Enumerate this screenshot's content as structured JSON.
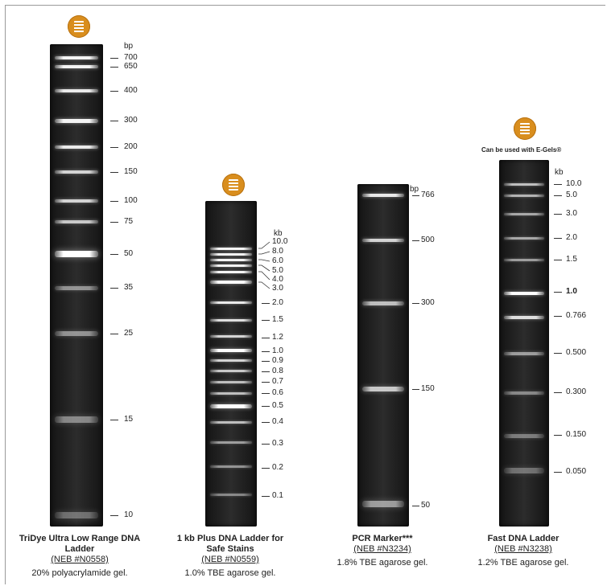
{
  "panels": [
    {
      "id": "tridye",
      "title": "TriDye Ultra Low Range DNA Ladder",
      "catalog": "(NEB #N0558)",
      "gel": "20% polyacrylamide gel.",
      "unit": "bp",
      "badge": "ladder-icon",
      "bands": [
        {
          "label": "700",
          "brightness": 0.95
        },
        {
          "label": "650",
          "brightness": 0.95
        },
        {
          "label": "400",
          "brightness": 0.9
        },
        {
          "label": "300",
          "brightness": 0.95
        },
        {
          "label": "200",
          "brightness": 0.9
        },
        {
          "label": "150",
          "brightness": 0.8
        },
        {
          "label": "100",
          "brightness": 0.8
        },
        {
          "label": "75",
          "brightness": 0.75
        },
        {
          "label": "50",
          "brightness": 1.0
        },
        {
          "label": "35",
          "brightness": 0.5
        },
        {
          "label": "25",
          "brightness": 0.5
        },
        {
          "label": "15",
          "brightness": 0.45
        },
        {
          "label": "10",
          "brightness": 0.35
        }
      ]
    },
    {
      "id": "kbplus",
      "title": "1 kb Plus DNA Ladder for Safe Stains",
      "catalog": "(NEB #N0559)",
      "gel": "1.0% TBE agarose gel.",
      "unit": "kb",
      "badge": "ladder-icon",
      "bands": [
        {
          "label": "10.0",
          "brightness": 0.95
        },
        {
          "label": "8.0",
          "brightness": 0.95
        },
        {
          "label": "6.0",
          "brightness": 0.95
        },
        {
          "label": "5.0",
          "brightness": 0.95
        },
        {
          "label": "4.0",
          "brightness": 0.95
        },
        {
          "label": "3.0",
          "brightness": 1.0
        },
        {
          "label": "2.0",
          "brightness": 0.9
        },
        {
          "label": "1.5",
          "brightness": 0.85
        },
        {
          "label": "1.2",
          "brightness": 0.8
        },
        {
          "label": "1.0",
          "brightness": 1.0
        },
        {
          "label": "0.9",
          "brightness": 0.8
        },
        {
          "label": "0.8",
          "brightness": 0.75
        },
        {
          "label": "0.7",
          "brightness": 0.7
        },
        {
          "label": "0.6",
          "brightness": 0.7
        },
        {
          "label": "0.5",
          "brightness": 1.0
        },
        {
          "label": "0.4",
          "brightness": 0.7
        },
        {
          "label": "0.3",
          "brightness": 0.55
        },
        {
          "label": "0.2",
          "brightness": 0.5
        },
        {
          "label": "0.1",
          "brightness": 0.45
        }
      ]
    },
    {
      "id": "pcr",
      "title": "PCR Marker***",
      "catalog": "(NEB #N3234)",
      "gel": "1.8% TBE agarose gel.",
      "unit": "bp",
      "bands": [
        {
          "label": "766",
          "brightness": 0.9
        },
        {
          "label": "500",
          "brightness": 0.8
        },
        {
          "label": "300",
          "brightness": 0.7
        },
        {
          "label": "150",
          "brightness": 0.75
        },
        {
          "label": "50",
          "brightness": 0.55
        }
      ]
    },
    {
      "id": "fast",
      "title": "Fast DNA Ladder",
      "catalog": "(NEB #N3238)",
      "gel": "1.2% TBE agarose gel.",
      "unit": "kb",
      "badge": "ladder-icon",
      "note": "Can be used with E-Gels®",
      "bands": [
        {
          "label": "10.0",
          "brightness": 0.7
        },
        {
          "label": "5.0",
          "brightness": 0.65
        },
        {
          "label": "3.0",
          "brightness": 0.6
        },
        {
          "label": "2.0",
          "brightness": 0.6
        },
        {
          "label": "1.5",
          "brightness": 0.55
        },
        {
          "label": "1.0",
          "brightness": 1.0,
          "bold": true
        },
        {
          "label": "0.766",
          "brightness": 0.85
        },
        {
          "label": "0.500",
          "brightness": 0.55
        },
        {
          "label": "0.300",
          "brightness": 0.45
        },
        {
          "label": "0.150",
          "brightness": 0.4
        },
        {
          "label": "0.050",
          "brightness": 0.35
        }
      ]
    }
  ]
}
